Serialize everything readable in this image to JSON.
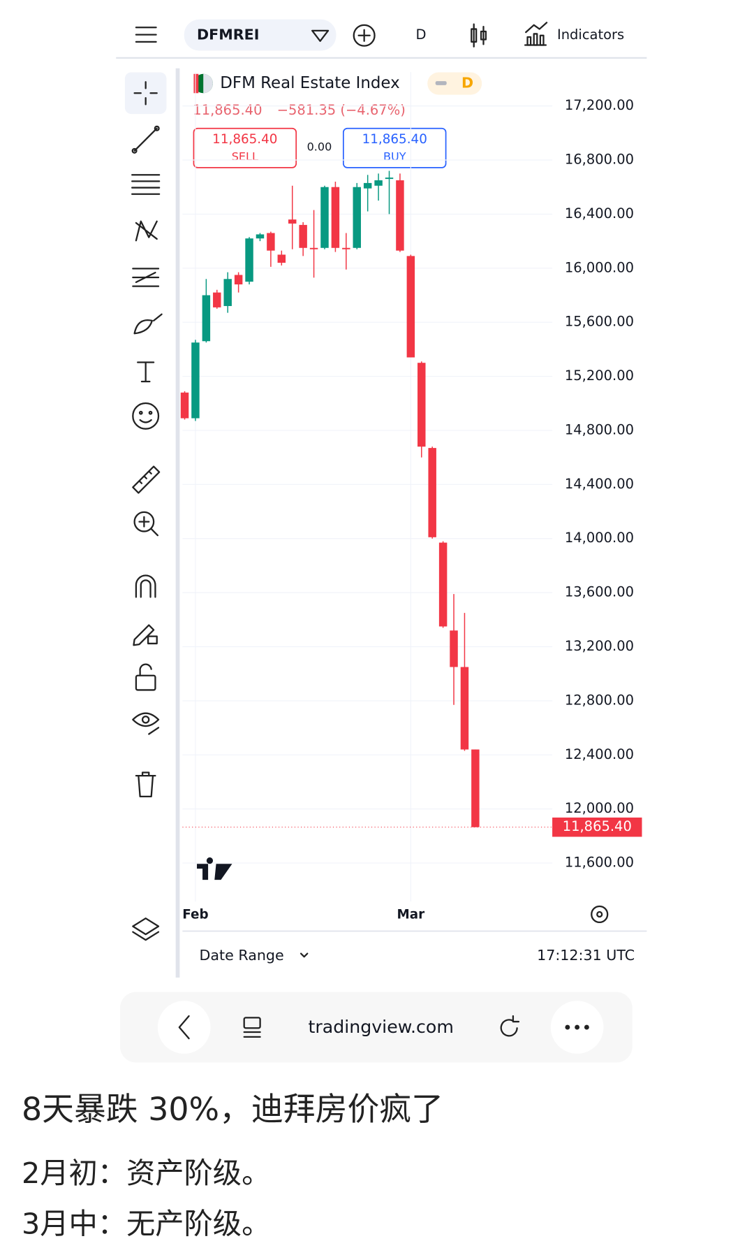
{
  "toolbar": {
    "symbol": "DFMREI",
    "interval": "D",
    "indicators": "Indicators"
  },
  "quote": {
    "last": "11,865.40",
    "change": "−581.35 (−4.67%)",
    "sell_price": "11,865.40",
    "sell": "SELL",
    "spread": "0.00",
    "buy_price": "11,865.40",
    "buy": "BUY",
    "badge": "D"
  },
  "chart_data": {
    "type": "candlestick",
    "title": "DFM Real Estate Index",
    "categories": [
      null,
      "Feb",
      null,
      null,
      null,
      null,
      null,
      null,
      null,
      null,
      null,
      null,
      null,
      null,
      null,
      null,
      null,
      null,
      null,
      null,
      null,
      "Mar",
      null,
      null,
      null,
      null,
      null,
      null
    ],
    "open": [
      15080,
      14890,
      15460,
      15820,
      15720,
      15950,
      15900,
      16220,
      16260,
      16100,
      16360,
      16320,
      16150,
      16150,
      16600,
      16150,
      16150,
      16590,
      16610,
      16660,
      16650,
      16090,
      15300,
      14670,
      13970,
      13320,
      13050,
      12440
    ],
    "high": [
      15090,
      15470,
      15920,
      15840,
      15970,
      15970,
      16230,
      16260,
      16270,
      16130,
      16610,
      16340,
      16430,
      16610,
      16640,
      16260,
      16630,
      16690,
      16700,
      16720,
      16700,
      16100,
      15310,
      14680,
      13980,
      13590,
      13450,
      12440
    ],
    "low": [
      14880,
      14870,
      15450,
      15700,
      15670,
      15820,
      15880,
      16200,
      16010,
      16020,
      16140,
      16090,
      15930,
      16140,
      16120,
      15990,
      16140,
      16420,
      16500,
      16400,
      16120,
      15340,
      14600,
      14000,
      13340,
      12770,
      12430,
      11865.4
    ],
    "close": [
      14890,
      15450,
      15800,
      15710,
      15920,
      15880,
      16220,
      16250,
      16130,
      16040,
      16330,
      16150,
      16140,
      16600,
      16150,
      16140,
      16600,
      16630,
      16650,
      16670,
      16130,
      15340,
      14680,
      14010,
      13350,
      13050,
      12440,
      11865.4
    ],
    "up_color": "#089981",
    "down_color": "#f23645",
    "ylim": [
      11350,
      17450
    ],
    "yticks": [
      {
        "value": 11600,
        "label": "11,600.00"
      },
      {
        "value": 12000,
        "label": "12,000.00"
      },
      {
        "value": 12400,
        "label": "12,400.00"
      },
      {
        "value": 12800,
        "label": "12,800.00"
      },
      {
        "value": 13200,
        "label": "13,200.00"
      },
      {
        "value": 13600,
        "label": "13,600.00"
      },
      {
        "value": 14000,
        "label": "14,000.00"
      },
      {
        "value": 14400,
        "label": "14,400.00"
      },
      {
        "value": 14800,
        "label": "14,800.00"
      },
      {
        "value": 15200,
        "label": "15,200.00"
      },
      {
        "value": 15600,
        "label": "15,600.00"
      },
      {
        "value": 16000,
        "label": "16,000.00"
      },
      {
        "value": 16400,
        "label": "16,400.00"
      },
      {
        "value": 16800,
        "label": "16,800.00"
      },
      {
        "value": 17200,
        "label": "17,200.00"
      }
    ],
    "grid": true,
    "price_marker": {
      "value": 11865.4,
      "label": "11,865.40"
    }
  },
  "footer": {
    "date_range": "Date Range",
    "time": "17:12:31 UTC"
  },
  "browser": {
    "url": "tradingview.com"
  },
  "post": {
    "title": "8天暴跌 30%，迪拜房价疯了",
    "lines": [
      "2月初：资产阶级。",
      "3月中：无产阶级。"
    ]
  }
}
